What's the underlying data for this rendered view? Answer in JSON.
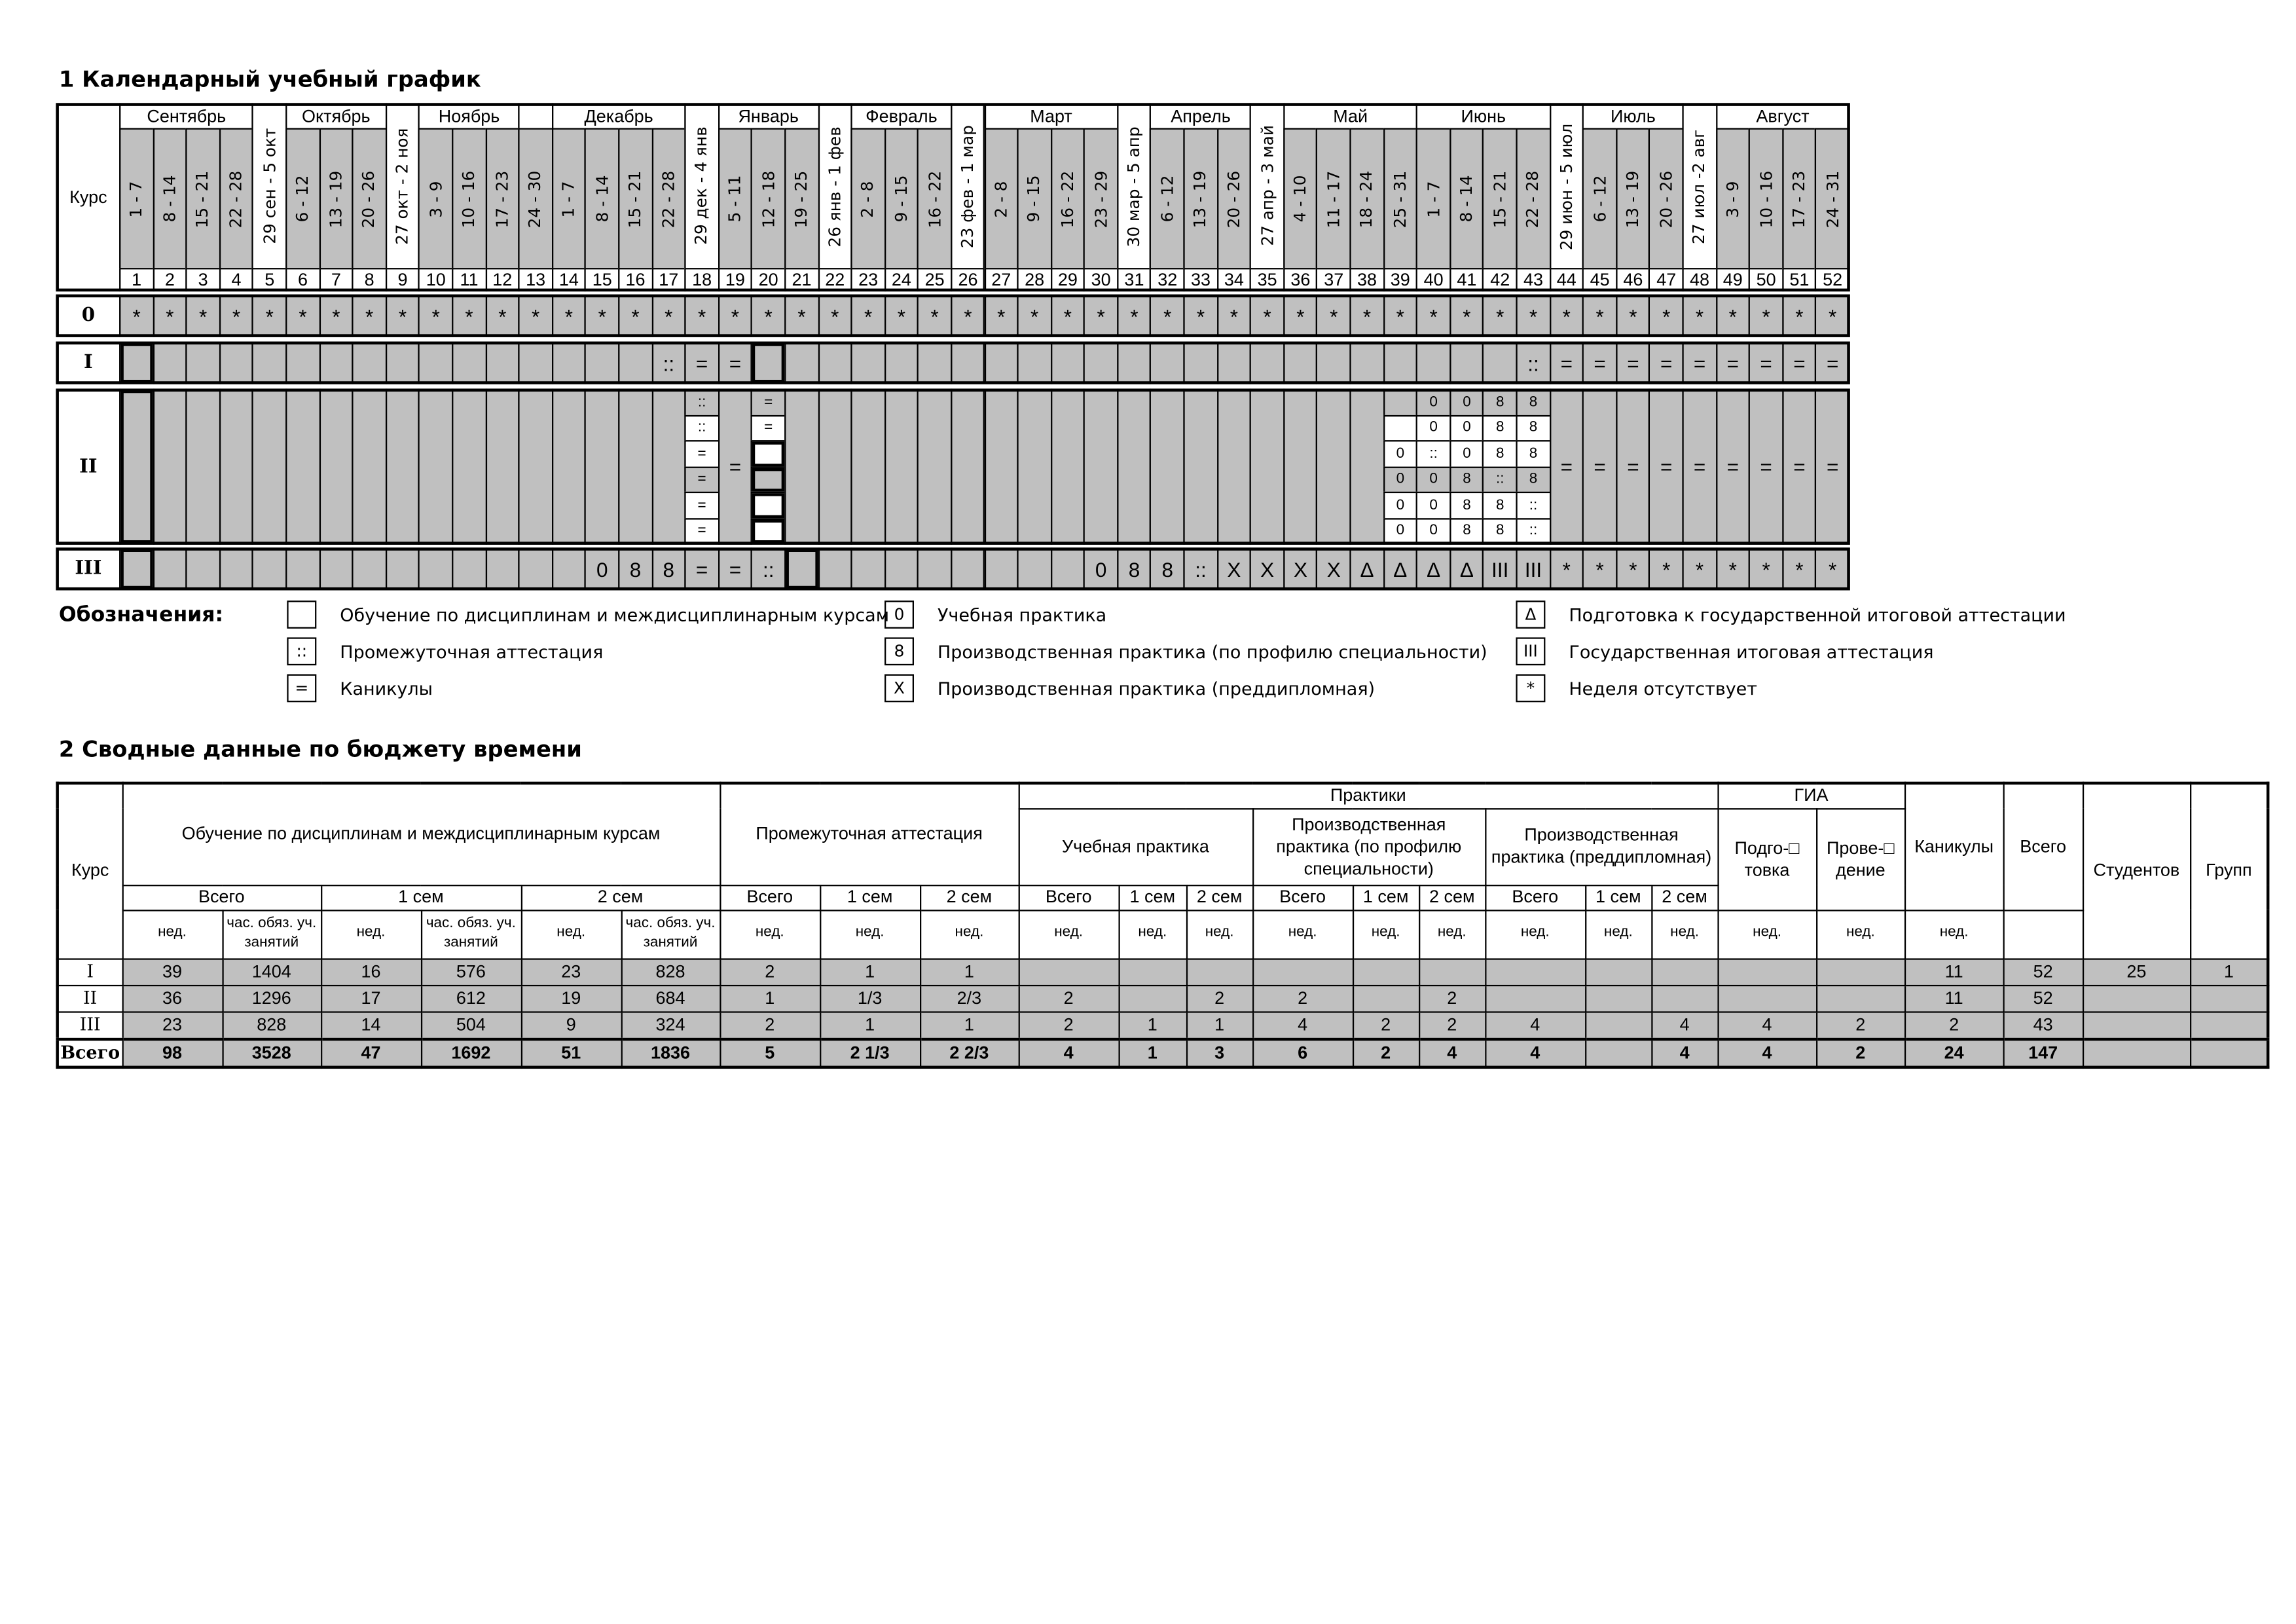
{
  "section1": {
    "title": "1 Календарный учебный график"
  },
  "calendar": {
    "course_header": "Курс",
    "months": [
      {
        "name": "Сентябрь",
        "from": 1,
        "to": 4
      },
      {
        "name": "Октябрь",
        "from": 6,
        "to": 8
      },
      {
        "name": "Ноябрь",
        "from": 10,
        "to": 12
      },
      {
        "name": "Декабрь",
        "from": 14,
        "to": 17
      },
      {
        "name": "Январь",
        "from": 19,
        "to": 21
      },
      {
        "name": "Февраль",
        "from": 23,
        "to": 25
      },
      {
        "name": "Март",
        "from": 27,
        "to": 30
      },
      {
        "name": "Апрель",
        "from": 32,
        "to": 34
      },
      {
        "name": "Май",
        "from": 36,
        "to": 39
      },
      {
        "name": "Июнь",
        "from": 40,
        "to": 43
      },
      {
        "name": "Июль",
        "from": 45,
        "to": 47
      },
      {
        "name": "Август",
        "from": 49,
        "to": 52
      }
    ],
    "weeks": [
      "1 - 7",
      "8 - 14",
      "15 - 21",
      "22 - 28",
      "29 сен - 5 окт",
      "6 - 12",
      "13 - 19",
      "20 - 26",
      "27 окт - 2 ноя",
      "3 - 9",
      "10 - 16",
      "17 - 23",
      "24 - 30",
      "1 - 7",
      "8 - 14",
      "15 - 21",
      "22 - 28",
      "29 дек - 4 янв",
      "5 - 11",
      "12 - 18",
      "19 - 25",
      "26 янв - 1 фев",
      "2 - 8",
      "9 - 15",
      "16 - 22",
      "23 фев - 1 мар",
      "2 - 8",
      "9 - 15",
      "16 - 22",
      "23 - 29",
      "30 мар - 5 апр",
      "6 - 12",
      "13 - 19",
      "20 - 26",
      "27 апр - 3 май",
      "4 - 10",
      "11 - 17",
      "18 - 24",
      "25 - 31",
      "1 - 7",
      "8 - 14",
      "15 - 21",
      "22 - 28",
      "29 июн - 5 июл",
      "6 - 12",
      "13 - 19",
      "20 - 26",
      "27 июл -2 авг",
      "3 - 9",
      "10 - 16",
      "17 - 23",
      "24 - 31"
    ],
    "week_numbers": [
      "1",
      "2",
      "3",
      "4",
      "5",
      "6",
      "7",
      "8",
      "9",
      "10",
      "11",
      "12",
      "13",
      "14",
      "15",
      "16",
      "17",
      "18",
      "19",
      "20",
      "21",
      "22",
      "23",
      "24",
      "25",
      "26",
      "27",
      "28",
      "29",
      "30",
      "31",
      "32",
      "33",
      "34",
      "35",
      "36",
      "37",
      "38",
      "39",
      "40",
      "41",
      "42",
      "43",
      "44",
      "45",
      "46",
      "47",
      "48",
      "49",
      "50",
      "51",
      "52"
    ],
    "rows": [
      {
        "course": "0",
        "cells": [
          "*",
          "*",
          "*",
          "*",
          "*",
          "*",
          "*",
          "*",
          "*",
          "*",
          "*",
          "*",
          "*",
          "*",
          "*",
          "*",
          "*",
          "*",
          "*",
          "*",
          "*",
          "*",
          "*",
          "*",
          "*",
          "*",
          "*",
          "*",
          "*",
          "*",
          "*",
          "*",
          "*",
          "*",
          "*",
          "*",
          "*",
          "*",
          "*",
          "*",
          "*",
          "*",
          "*",
          "*",
          "*",
          "*",
          "*",
          "*",
          "*",
          "*",
          "*",
          "*"
        ]
      },
      {
        "course": "I",
        "cells": [
          "",
          "",
          "",
          "",
          "",
          "",
          "",
          "",
          "",
          "",
          "",
          "",
          "",
          "",
          "",
          "",
          "::",
          "=",
          "=",
          "",
          "",
          "",
          "",
          "",
          "",
          "",
          "",
          "",
          "",
          "",
          "",
          "",
          "",
          "",
          "",
          "",
          "",
          "",
          "",
          "",
          "",
          "",
          "::",
          "=",
          "=",
          "=",
          "=",
          "=",
          "=",
          "=",
          "=",
          "="
        ]
      },
      {
        "course": "II",
        "cells": [
          "",
          "",
          "",
          "",
          "",
          "",
          "",
          "",
          "",
          "",
          "",
          "",
          "",
          "",
          "",
          "",
          "",
          [
            "::",
            "::",
            "=",
            "=",
            "=",
            "="
          ],
          "=",
          [
            "=",
            "=",
            "",
            "",
            "",
            ""
          ],
          "",
          "",
          "",
          "",
          "",
          "",
          "",
          "",
          "",
          "",
          "",
          "",
          "",
          "",
          "",
          "",
          "",
          "",
          [
            "",
            "",
            "0",
            "0",
            "0",
            "0"
          ],
          [
            "0",
            "0",
            "::",
            "0",
            "0",
            "0"
          ],
          [
            "0",
            "0",
            "0",
            "8",
            "8",
            "8"
          ],
          [
            "8",
            "8",
            "8",
            "::",
            "8",
            "8"
          ],
          [
            "8",
            "8",
            "8",
            "8",
            "::",
            "::"
          ],
          "=",
          "=",
          "=",
          "=",
          "=",
          "=",
          "=",
          "=",
          "="
        ]
      },
      {
        "course": "III",
        "cells": [
          "",
          "",
          "",
          "",
          "",
          "",
          "",
          "",
          "",
          "",
          "",
          "",
          "",
          "",
          "0",
          "8",
          "8",
          "=",
          "=",
          "::",
          "",
          "",
          "",
          "",
          "",
          "",
          "",
          "",
          "",
          "0",
          "8",
          "8",
          "::",
          "X",
          "X",
          "X",
          "X",
          "Δ",
          "Δ",
          "Δ",
          "Δ",
          "III",
          "III",
          "*",
          "*",
          "*",
          "*",
          "*",
          "*",
          "*",
          "*",
          "*"
        ]
      }
    ]
  },
  "legend": {
    "title": "Обозначения:",
    "items": [
      {
        "symbol": "",
        "label": "Обучение по дисциплинам и междисциплинарным курсам"
      },
      {
        "symbol": "::",
        "label": "Промежуточная аттестация"
      },
      {
        "symbol": "=",
        "label": "Каникулы"
      },
      {
        "symbol": "0",
        "label": "Учебная практика"
      },
      {
        "symbol": "8",
        "label": "Производственная практика (по профилю специальности)"
      },
      {
        "symbol": "X",
        "label": "Производственная практика (преддипломная)"
      },
      {
        "symbol": "Δ",
        "label": "Подготовка к государственной итоговой аттестации"
      },
      {
        "symbol": "III",
        "label": "Государственная итоговая аттестация"
      },
      {
        "symbol": "*",
        "label": "Неделя отсутствует"
      }
    ]
  },
  "section2": {
    "title": "2 Сводные данные по бюджету времени",
    "headers": {
      "course": "Курс",
      "training": "Обучение по дисциплинам и междисциплинарным курсам",
      "interim": "Промежуточная аттестация",
      "practices": "Практики",
      "gia": "ГИА",
      "holidays": "Каникулы",
      "total": "Всего",
      "students": "Студентов",
      "groups": "Групп",
      "edu_practice": "Учебная практика",
      "prod_practice": "Производственная практика (по профилю специальности)",
      "prediploma": "Производственная практика (преддипломная)",
      "gia_prep": "Подго-□ товка",
      "gia_conduct": "Прове-□ дение",
      "all": "Всего",
      "sem1": "1 сем",
      "sem2": "2 сем",
      "weeks": "нед.",
      "hours": "час. обяз. уч. занятий"
    },
    "rows": [
      {
        "course": "I",
        "values": [
          "39",
          "1404",
          "16",
          "576",
          "23",
          "828",
          "2",
          "1",
          "1",
          "",
          "",
          "",
          "",
          "",
          "",
          "",
          "",
          "",
          "",
          "",
          "11",
          "52",
          "25",
          "1"
        ]
      },
      {
        "course": "II",
        "values": [
          "36",
          "1296",
          "17",
          "612",
          "19",
          "684",
          "1",
          "1/3",
          "2/3",
          "2",
          "",
          "2",
          "2",
          "",
          "2",
          "",
          "",
          "",
          "",
          "",
          "11",
          "52",
          "",
          ""
        ]
      },
      {
        "course": "III",
        "values": [
          "23",
          "828",
          "14",
          "504",
          "9",
          "324",
          "2",
          "1",
          "1",
          "2",
          "1",
          "1",
          "4",
          "2",
          "2",
          "4",
          "",
          "4",
          "4",
          "2",
          "2",
          "43",
          "",
          ""
        ]
      },
      {
        "course": "Всего",
        "values": [
          "98",
          "3528",
          "47",
          "1692",
          "51",
          "1836",
          "5",
          "2 1/3",
          "2 2/3",
          "4",
          "1",
          "3",
          "6",
          "2",
          "4",
          "4",
          "",
          "4",
          "4",
          "2",
          "24",
          "147",
          "",
          ""
        ]
      }
    ]
  }
}
